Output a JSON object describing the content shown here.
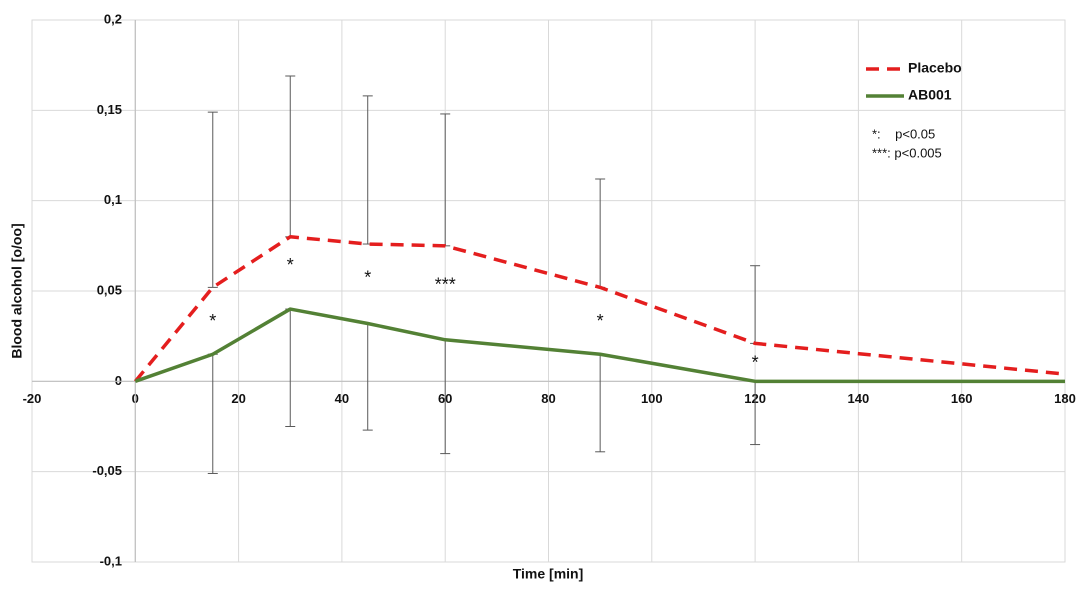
{
  "chart_data": {
    "type": "line",
    "x_label": "Time [min]",
    "y_label": "Blood alcohol [o/oo]",
    "x": [
      0,
      15,
      30,
      45,
      60,
      90,
      120,
      180
    ],
    "series": [
      {
        "name": "Placebo",
        "color": "#e41e1e",
        "dash": true,
        "values": [
          0,
          0.052,
          0.08,
          0.076,
          0.075,
          0.052,
          0.021,
          0.004
        ],
        "errors": [
          null,
          0.097,
          0.089,
          0.082,
          0.073,
          0.06,
          0.043,
          null
        ],
        "error_direction": "up"
      },
      {
        "name": "AB001",
        "color": "#538135",
        "dash": false,
        "values": [
          0,
          0.015,
          0.04,
          0.032,
          0.023,
          0.015,
          0,
          0
        ],
        "errors": [
          null,
          0.066,
          0.065,
          0.059,
          0.063,
          0.054,
          0.035,
          null
        ],
        "error_direction": "down"
      }
    ],
    "xlim": [
      -20,
      180
    ],
    "xticks": [
      -20,
      0,
      20,
      40,
      60,
      80,
      100,
      120,
      140,
      160,
      180
    ],
    "ylim": [
      -0.1,
      0.2
    ],
    "yticks": [
      {
        "value": -0.1,
        "label": "-0,1"
      },
      {
        "value": -0.05,
        "label": "-0,05"
      },
      {
        "value": 0,
        "label": "0"
      },
      {
        "value": 0.05,
        "label": "0,05"
      },
      {
        "value": 0.1,
        "label": "0,1"
      },
      {
        "value": 0.15,
        "label": "0,15"
      },
      {
        "value": 0.2,
        "label": "0,2"
      }
    ],
    "grid": true,
    "legend_position": "upper right",
    "annotations": [
      {
        "text": "*",
        "x": 15,
        "y": 0.035
      },
      {
        "text": "*",
        "x": 30,
        "y": 0.066
      },
      {
        "text": "*",
        "x": 45,
        "y": 0.059
      },
      {
        "text": "***",
        "x": 60,
        "y": 0.055
      },
      {
        "text": "*",
        "x": 90,
        "y": 0.035
      },
      {
        "text": "*",
        "x": 120,
        "y": 0.012
      }
    ],
    "notes": [
      "*:    p<0.05",
      "***: p<0.005"
    ]
  }
}
